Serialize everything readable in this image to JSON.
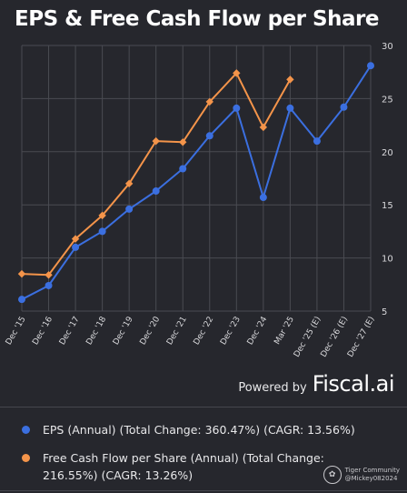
{
  "colors": {
    "background": "#26272d",
    "grid": "#4a4b52",
    "eps": "#3b6fe0",
    "fcf": "#f4944a",
    "tick_text": "#d9d9dc"
  },
  "chart_data": {
    "type": "line",
    "title": "EPS & Free Cash Flow per Share",
    "categories": [
      "Dec '15",
      "Dec '16",
      "Dec '17",
      "Dec '18",
      "Dec '19",
      "Dec '20",
      "Dec '21",
      "Dec '22",
      "Dec '23",
      "Dec '24",
      "Mar '25",
      "Dec '25 (E)",
      "Dec '26 (E)",
      "Dec '27 (E)"
    ],
    "series": [
      {
        "name": "EPS (Annual) (Total Change: 360.47%) (CAGR: 13.56%)",
        "color": "#3b6fe0",
        "marker": "circle",
        "values": [
          6.1,
          7.4,
          11.0,
          12.5,
          14.6,
          16.3,
          18.4,
          21.5,
          24.1,
          15.7,
          24.1,
          21.0,
          24.2,
          28.1
        ]
      },
      {
        "name": "Free Cash Flow per Share (Annual) (Total Change: 216.55%) (CAGR: 13.26%)",
        "color": "#f4944a",
        "marker": "diamond",
        "values": [
          8.5,
          8.4,
          11.8,
          14.0,
          17.0,
          21.0,
          20.9,
          24.7,
          27.4,
          22.3,
          26.8,
          null,
          null,
          null
        ]
      }
    ],
    "ylim": [
      5,
      30
    ],
    "yticks": [
      5,
      10,
      15,
      20,
      25,
      30
    ],
    "y_axis_side": "right",
    "grid": true,
    "legend": "bottom",
    "xlabel": "",
    "ylabel": ""
  },
  "branding": {
    "powered_by": "Powered by",
    "brand": "Fiscal.ai"
  },
  "watermark": {
    "logo": "✿",
    "community": "Tiger Community",
    "user": "@Mickey082024"
  }
}
